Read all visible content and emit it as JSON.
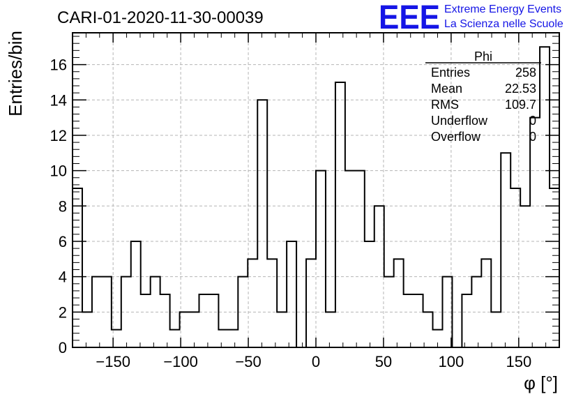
{
  "chart_data": {
    "type": "histogram",
    "title": "CARI-01-2020-11-30-00039",
    "xlabel": "φ [°]",
    "ylabel": "Entries/bin",
    "xlim": [
      -180,
      180
    ],
    "ylim": [
      0,
      17.8
    ],
    "x_ticks": [
      -150,
      -100,
      -50,
      0,
      50,
      100,
      150
    ],
    "x_tick_labels": [
      "−150",
      "−100",
      "−50",
      "0",
      "50",
      "100",
      "150"
    ],
    "y_ticks": [
      0,
      2,
      4,
      6,
      8,
      10,
      12,
      14,
      16
    ],
    "grid": true,
    "bin_width": 7.2,
    "bin_edges_start": -180,
    "values": [
      9,
      2,
      4,
      4,
      1,
      4,
      6,
      3,
      4,
      3,
      1,
      2,
      2,
      3,
      3,
      1,
      1,
      4,
      5,
      14,
      5,
      2,
      6,
      0,
      5,
      10,
      2,
      15,
      10,
      10,
      6,
      8,
      4,
      5,
      3,
      3,
      2,
      1,
      4,
      0,
      3,
      4,
      5,
      2,
      11,
      9,
      8,
      13,
      17,
      9
    ],
    "stats_box": {
      "name": "Phi",
      "rows": [
        {
          "label": "Entries",
          "value": "258"
        },
        {
          "label": "Mean",
          "value": "22.53"
        },
        {
          "label": "RMS",
          "value": "109.7"
        },
        {
          "label": "Underflow",
          "value": "0"
        },
        {
          "label": "Overflow",
          "value": "0"
        }
      ]
    }
  },
  "logo": {
    "mark": "EEE",
    "line1": "Extreme Energy Events",
    "line2": "La Scienza nelle Scuole"
  },
  "colors": {
    "logo": "#1515e6",
    "line": "#000000",
    "grid": "#b4b4b4"
  }
}
